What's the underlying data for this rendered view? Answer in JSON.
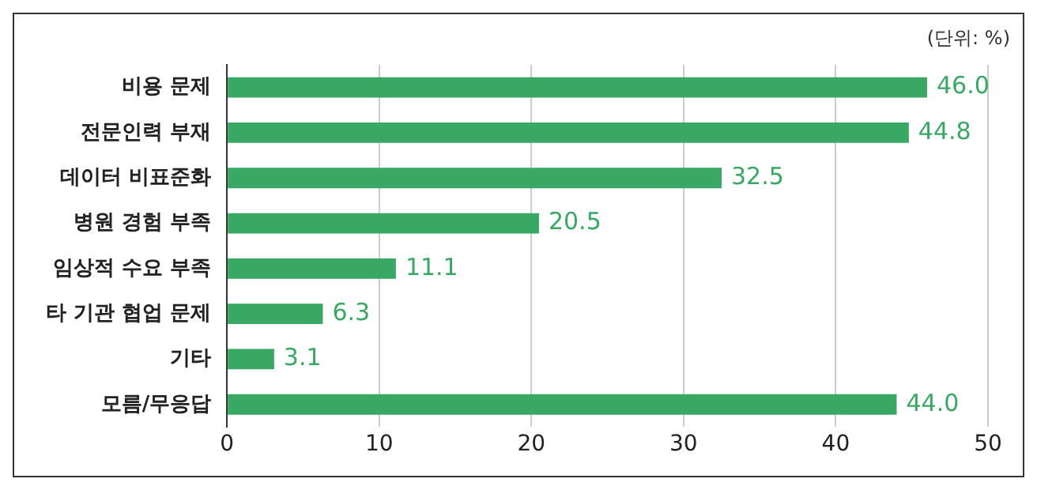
{
  "chart_data": {
    "type": "bar",
    "orientation": "horizontal",
    "categories": [
      "비용 문제",
      "전문인력 부재",
      "데이터 비표준화",
      "병원 경험 부족",
      "임상적 수요 부족",
      "타 기관 협업 문제",
      "기타",
      "모름/무응답"
    ],
    "values": [
      46.0,
      44.8,
      32.5,
      20.5,
      11.1,
      6.3,
      3.1,
      44.0
    ],
    "value_labels": [
      "46.0",
      "44.8",
      "32.5",
      "20.5",
      "11.1",
      "6.3",
      "3.1",
      "44.0"
    ],
    "color": "#3aa865",
    "xlim": [
      0,
      50
    ],
    "xticks": [
      0,
      10,
      20,
      30,
      40,
      50
    ],
    "grid": "x",
    "legend": false,
    "annotations": [
      "(단위: %)"
    ]
  }
}
